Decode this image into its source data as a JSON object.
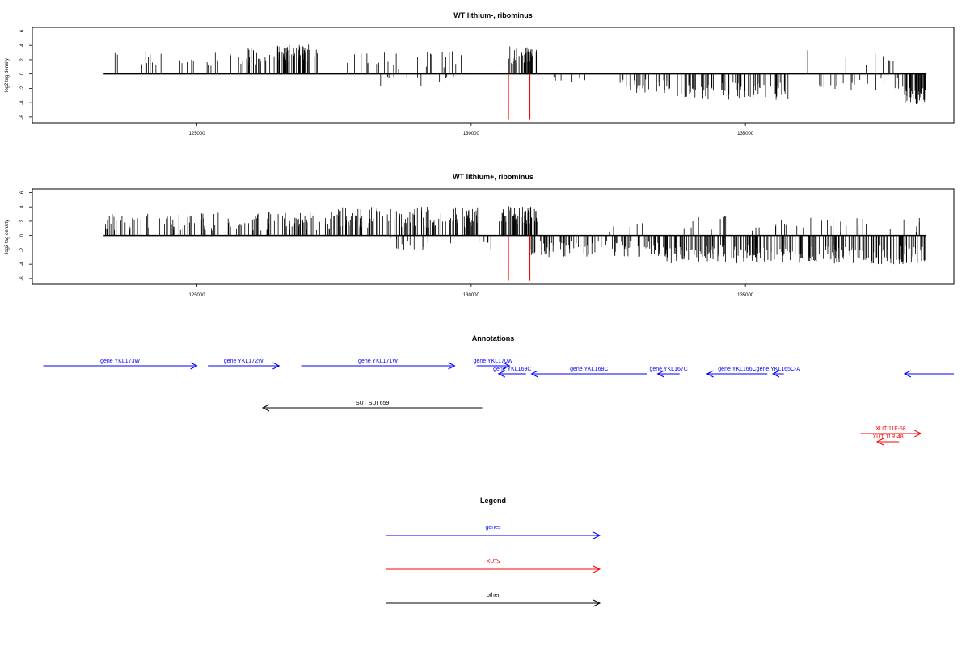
{
  "chart_data": [
    {
      "type": "bar",
      "title": "WT lithium-, ribominus",
      "ylabel": "log2 tag density",
      "xlim": [
        122000,
        138800
      ],
      "ylim": [
        -6.8,
        6.5
      ],
      "x_ticks": [
        125000,
        130000,
        135000
      ],
      "x_tick_labels": [
        "125000",
        "130000",
        "135000"
      ],
      "y_ticks": [
        -6,
        -4,
        -2,
        0,
        2,
        4,
        6
      ],
      "y_tick_labels": [
        "-6",
        "-4",
        "-2",
        "0",
        "2",
        "4",
        "6"
      ],
      "baseline_x_range": [
        123300,
        138300
      ],
      "marker_color": "#ff0000",
      "markers": [
        {
          "x": 130680,
          "y": -6.3
        },
        {
          "x": 131070,
          "y": -6.3
        }
      ],
      "series": [
        {
          "strand": "+",
          "segments": [
            {
              "x": [
                123300,
                124500
              ],
              "n": 10,
              "mean": 2.0,
              "spread": 1.2
            },
            {
              "x": [
                124600,
                125400
              ],
              "n": 10,
              "mean": 2.0,
              "spread": 1.3
            },
            {
              "x": [
                125600,
                126400
              ],
              "n": 25,
              "mean": 2.4,
              "spread": 1.3
            },
            {
              "x": [
                126400,
                127200
              ],
              "n": 55,
              "mean": 2.9,
              "spread": 1.2
            },
            {
              "x": [
                127700,
                128700
              ],
              "n": 14,
              "mean": 1.8,
              "spread": 1.2
            },
            {
              "x": [
                129000,
                129900
              ],
              "n": 12,
              "mean": 2.0,
              "spread": 1.3
            },
            {
              "x": [
                130650,
                131200
              ],
              "n": 38,
              "mean": 2.6,
              "spread": 1.3
            },
            {
              "x": [
                136100,
                136150
              ],
              "n": 2,
              "mean": 3.3,
              "spread": 0.5
            },
            {
              "x": [
                136800,
                137700
              ],
              "n": 8,
              "mean": 2.0,
              "spread": 0.9
            }
          ]
        },
        {
          "strand": "-",
          "segments": [
            {
              "x": [
                128300,
                130200
              ],
              "n": 12,
              "mean": -1.0,
              "spread": 1.0
            },
            {
              "x": [
                131500,
                132200
              ],
              "n": 6,
              "mean": -0.7,
              "spread": 0.5
            },
            {
              "x": [
                132700,
                133600
              ],
              "n": 30,
              "mean": -1.7,
              "spread": 1.0
            },
            {
              "x": [
                133600,
                135800
              ],
              "n": 85,
              "mean": -2.4,
              "spread": 1.2
            },
            {
              "x": [
                136200,
                137900
              ],
              "n": 20,
              "mean": -1.5,
              "spread": 1.0
            },
            {
              "x": [
                137900,
                138300
              ],
              "n": 45,
              "mean": -3.0,
              "spread": 1.3
            }
          ]
        }
      ]
    },
    {
      "type": "bar",
      "title": "WT lithium+, ribominus",
      "ylabel": "log2 tag density",
      "xlim": [
        122000,
        138800
      ],
      "ylim": [
        -6.8,
        6.5
      ],
      "x_ticks": [
        125000,
        130000,
        135000
      ],
      "x_tick_labels": [
        "125000",
        "130000",
        "135000"
      ],
      "y_ticks": [
        -6,
        -4,
        -2,
        0,
        2,
        4,
        6
      ],
      "y_tick_labels": [
        "-6",
        "-4",
        "-2",
        "0",
        "2",
        "4",
        "6"
      ],
      "baseline_x_range": [
        123300,
        138300
      ],
      "marker_color": "#ff0000",
      "markers": [
        {
          "x": 130680,
          "y": -6.3
        },
        {
          "x": 131070,
          "y": -6.3
        }
      ],
      "series": [
        {
          "strand": "+",
          "segments": [
            {
              "x": [
                123300,
                126000
              ],
              "n": 70,
              "mean": 2.0,
              "spread": 1.3
            },
            {
              "x": [
                126000,
                127500
              ],
              "n": 60,
              "mean": 2.0,
              "spread": 1.4
            },
            {
              "x": [
                127500,
                130200
              ],
              "n": 130,
              "mean": 2.6,
              "spread": 1.5
            },
            {
              "x": [
                130500,
                131200
              ],
              "n": 70,
              "mean": 2.8,
              "spread": 1.3
            },
            {
              "x": [
                132500,
                138200
              ],
              "n": 45,
              "mean": 1.7,
              "spread": 1.2
            }
          ]
        },
        {
          "strand": "-",
          "segments": [
            {
              "x": [
                128300,
                130400
              ],
              "n": 20,
              "mean": -1.3,
              "spread": 1.0
            },
            {
              "x": [
                131000,
                133500
              ],
              "n": 90,
              "mean": -1.9,
              "spread": 1.1
            },
            {
              "x": [
                133500,
                136500
              ],
              "n": 150,
              "mean": -2.6,
              "spread": 1.3
            },
            {
              "x": [
                136500,
                138300
              ],
              "n": 100,
              "mean": -2.7,
              "spread": 1.3
            }
          ]
        }
      ]
    }
  ],
  "annotations": {
    "title": "Annotations",
    "features": [
      {
        "label": "gene YKL173W",
        "class": "genes",
        "start": 122200,
        "end": 125000
      },
      {
        "label": "gene YKL172W",
        "class": "genes",
        "start": 125200,
        "end": 126500
      },
      {
        "label": "gene YKL171W",
        "class": "genes",
        "start": 126900,
        "end": 129700
      },
      {
        "label": "gene YKL170W",
        "class": "genes",
        "start": 130100,
        "end": 130700
      },
      {
        "label": "gene YKL169C",
        "class": "genes",
        "start": 131000,
        "end": 130500
      },
      {
        "label": "gene YKL168C",
        "class": "genes",
        "start": 133200,
        "end": 131100
      },
      {
        "label": "gene YKL167C",
        "class": "genes",
        "start": 133800,
        "end": 133400
      },
      {
        "label": "gene YKL166C",
        "class": "genes",
        "start": 135400,
        "end": 134300
      },
      {
        "label": "gene YKL165C-A",
        "class": "genes",
        "start": 135700,
        "end": 135500
      },
      {
        "label": "",
        "class": "genes",
        "start": 138800,
        "end": 137900
      },
      {
        "label": "SUT SUT659",
        "class": "other",
        "start": 130200,
        "end": 126200
      },
      {
        "label": "XUT 11F-58",
        "class": "XUTs",
        "start": 137100,
        "end": 138200
      },
      {
        "label": "XUT 11R-48",
        "class": "XUTs",
        "start": 137800,
        "end": 137400
      }
    ]
  },
  "legend": {
    "title": "Legend",
    "items": [
      {
        "label": "genes",
        "color": "#0000ff"
      },
      {
        "label": "XUTs",
        "color": "#ff0000"
      },
      {
        "label": "other",
        "color": "#000000"
      }
    ]
  }
}
